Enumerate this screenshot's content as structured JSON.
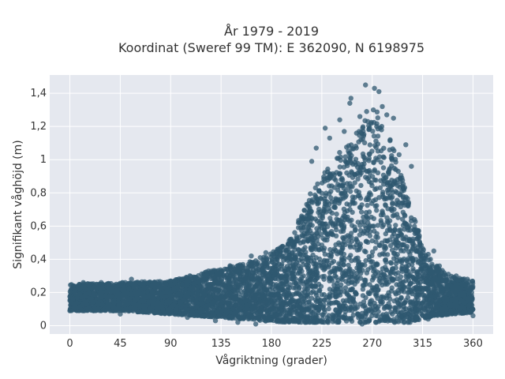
{
  "chart_data": {
    "type": "scatter",
    "title": [
      "År 1979 - 2019",
      "Koordinat (Sweref 99 TM): E 362090, N 6198975"
    ],
    "xlabel": "Vågriktning (grader)",
    "ylabel": "Signifikant våghöjd (m)",
    "xlim": [
      -18,
      378
    ],
    "ylim": [
      -0.05,
      1.51
    ],
    "xticks": [
      0,
      45,
      90,
      135,
      180,
      225,
      270,
      315,
      360
    ],
    "xtick_labels": [
      "0",
      "45",
      "90",
      "135",
      "180",
      "225",
      "270",
      "315",
      "360"
    ],
    "yticks": [
      0,
      0.2,
      0.4,
      0.6,
      0.8,
      1,
      1.2,
      1.4
    ],
    "ytick_labels": [
      "0",
      "0,2",
      "0,4",
      "0,6",
      "0,8",
      "1",
      "1,2",
      "1,4"
    ],
    "grid": true,
    "plot_background": "#e5e8ef",
    "marker_color": "#2f5870",
    "marker_opacity": 0.75,
    "envelope": {
      "description_x_deg": [
        0,
        45,
        90,
        135,
        170,
        195,
        215,
        235,
        255,
        265,
        275,
        290,
        305,
        320,
        340,
        360
      ],
      "lower_m": [
        0.09,
        0.09,
        0.07,
        0.05,
        0.03,
        0.02,
        0.02,
        0.02,
        0.02,
        0.02,
        0.02,
        0.02,
        0.02,
        0.05,
        0.07,
        0.08
      ],
      "upper_m": [
        0.25,
        0.26,
        0.27,
        0.35,
        0.4,
        0.5,
        0.8,
        1.0,
        1.15,
        1.25,
        1.3,
        1.05,
        0.7,
        0.4,
        0.3,
        0.27
      ]
    },
    "outliers": [
      {
        "x": 264,
        "y": 1.45
      },
      {
        "x": 272,
        "y": 1.43
      },
      {
        "x": 276,
        "y": 1.41
      },
      {
        "x": 251,
        "y": 1.37
      },
      {
        "x": 250,
        "y": 1.34
      },
      {
        "x": 279,
        "y": 1.32
      },
      {
        "x": 265,
        "y": 1.29
      },
      {
        "x": 271,
        "y": 1.3
      },
      {
        "x": 259,
        "y": 1.26
      },
      {
        "x": 283,
        "y": 1.27
      },
      {
        "x": 241,
        "y": 1.24
      },
      {
        "x": 289,
        "y": 1.25
      },
      {
        "x": 266,
        "y": 1.23
      },
      {
        "x": 228,
        "y": 1.19
      },
      {
        "x": 245,
        "y": 1.17
      },
      {
        "x": 274,
        "y": 1.2
      },
      {
        "x": 232,
        "y": 1.13
      },
      {
        "x": 256,
        "y": 1.16
      },
      {
        "x": 286,
        "y": 1.12
      },
      {
        "x": 220,
        "y": 1.07
      },
      {
        "x": 300,
        "y": 1.09
      },
      {
        "x": 294,
        "y": 1.03
      },
      {
        "x": 216,
        "y": 0.99
      },
      {
        "x": 305,
        "y": 0.96
      },
      {
        "x": 162,
        "y": 0.42
      },
      {
        "x": 170,
        "y": 0.41
      },
      {
        "x": 175,
        "y": 0.44
      },
      {
        "x": 140,
        "y": 0.34
      },
      {
        "x": 152,
        "y": 0.33
      },
      {
        "x": 188,
        "y": 0.47
      },
      {
        "x": 325,
        "y": 0.45
      },
      {
        "x": 320,
        "y": 0.43
      },
      {
        "x": 322,
        "y": 0.4
      },
      {
        "x": 330,
        "y": 0.36
      },
      {
        "x": 55,
        "y": 0.28
      },
      {
        "x": 47,
        "y": 0.26
      },
      {
        "x": 12,
        "y": 0.26
      },
      {
        "x": 28,
        "y": 0.26
      },
      {
        "x": 35,
        "y": 0.25
      },
      {
        "x": 105,
        "y": 0.27
      },
      {
        "x": 115,
        "y": 0.26
      },
      {
        "x": 128,
        "y": 0.3
      },
      {
        "x": 355,
        "y": 0.28
      },
      {
        "x": 345,
        "y": 0.3
      },
      {
        "x": 338,
        "y": 0.31
      },
      {
        "x": 166,
        "y": 0.01
      },
      {
        "x": 261,
        "y": 0.01
      },
      {
        "x": 210,
        "y": 0.02
      },
      {
        "x": 290,
        "y": 0.02
      },
      {
        "x": 130,
        "y": 0.03
      },
      {
        "x": 150,
        "y": 0.02
      },
      {
        "x": 105,
        "y": 0.05
      },
      {
        "x": 320,
        "y": 0.04
      },
      {
        "x": 45,
        "y": 0.07
      },
      {
        "x": 360,
        "y": 0.06
      },
      {
        "x": 0,
        "y": 0.09
      }
    ]
  }
}
